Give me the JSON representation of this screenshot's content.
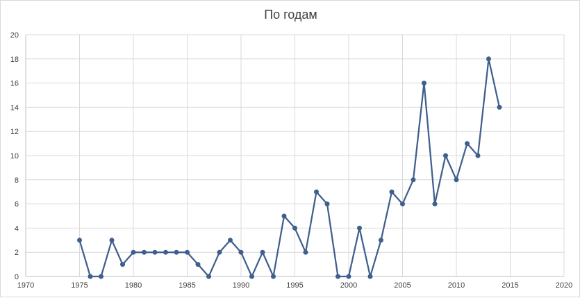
{
  "chart_data": {
    "type": "line",
    "title": "По годам",
    "xlabel": "",
    "ylabel": "",
    "xlim": [
      1970,
      2020
    ],
    "ylim": [
      0,
      20
    ],
    "x_ticks": [
      "1970",
      "1975",
      "1980",
      "1985",
      "1990",
      "1995",
      "2000",
      "2005",
      "2010",
      "2015",
      "2020"
    ],
    "y_ticks": [
      "0",
      "2",
      "4",
      "6",
      "8",
      "10",
      "12",
      "14",
      "16",
      "18",
      "20"
    ],
    "grid": true,
    "legend": "none",
    "series": [
      {
        "color": "#3f5f8c",
        "x": [
          1975,
          1976,
          1977,
          1978,
          1979,
          1980,
          1981,
          1982,
          1983,
          1984,
          1985,
          1986,
          1987,
          1988,
          1989,
          1990,
          1991,
          1992,
          1993,
          1994,
          1995,
          1996,
          1997,
          1998,
          1999,
          2000,
          2001,
          2002,
          2003,
          2004,
          2005,
          2006,
          2007,
          2008,
          2009,
          2010,
          2011,
          2012,
          2013,
          2014
        ],
        "y": [
          3,
          0,
          0,
          3,
          1,
          2,
          2,
          2,
          2,
          2,
          2,
          1,
          0,
          2,
          3,
          2,
          0,
          2,
          0,
          5,
          4,
          2,
          7,
          6,
          0,
          0,
          4,
          0,
          3,
          7,
          6,
          8,
          16,
          6,
          10,
          8,
          11,
          10,
          18,
          14
        ]
      }
    ]
  }
}
